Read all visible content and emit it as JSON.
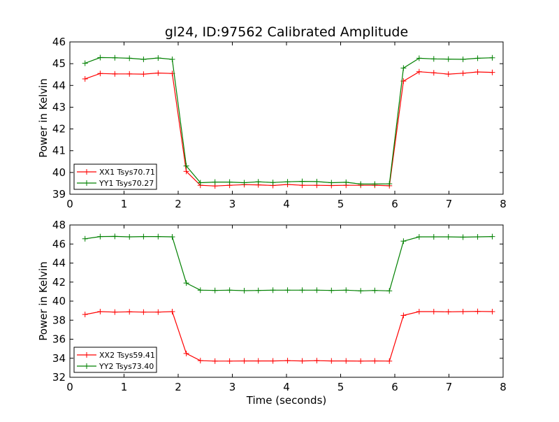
{
  "title": "gl24, ID:97562 Calibrated Amplitude",
  "colors": {
    "xx": "#ff0000",
    "yy": "#008000",
    "axes": "#000000",
    "background": "#ffffff"
  },
  "chart_data": [
    {
      "type": "line",
      "title": "gl24, ID:97562 Calibrated Amplitude",
      "xlabel": "",
      "ylabel": "Power in Kelvin",
      "xlim": [
        0,
        8
      ],
      "ylim": [
        39,
        46
      ],
      "xticks": [
        "0",
        "1",
        "2",
        "3",
        "4",
        "5",
        "6",
        "7",
        "8"
      ],
      "yticks": [
        "39",
        "40",
        "41",
        "42",
        "43",
        "44",
        "45",
        "46"
      ],
      "grid": false,
      "legend_position": "lower-left",
      "x": [
        0.28,
        0.56,
        0.83,
        1.1,
        1.36,
        1.63,
        1.89,
        2.15,
        2.41,
        2.68,
        2.95,
        3.22,
        3.48,
        3.75,
        4.02,
        4.29,
        4.56,
        4.83,
        5.1,
        5.37,
        5.63,
        5.9,
        6.16,
        6.45,
        6.72,
        6.99,
        7.26,
        7.53,
        7.8
      ],
      "series": [
        {
          "name": "XX1 Tsys70.71",
          "color": "#ff0000",
          "marker": "+",
          "values": [
            44.3,
            44.55,
            44.53,
            44.53,
            44.52,
            44.57,
            44.55,
            40.05,
            39.41,
            39.38,
            39.41,
            39.44,
            39.43,
            39.4,
            39.45,
            39.41,
            39.41,
            39.4,
            39.41,
            39.41,
            39.41,
            39.39,
            44.2,
            44.63,
            44.58,
            44.52,
            44.56,
            44.62,
            44.6
          ]
        },
        {
          "name": "YY1 Tsys70.27",
          "color": "#008000",
          "marker": "+",
          "values": [
            45.02,
            45.28,
            45.27,
            45.25,
            45.2,
            45.26,
            45.2,
            40.3,
            39.53,
            39.56,
            39.56,
            39.53,
            39.57,
            39.54,
            39.57,
            39.59,
            39.58,
            39.53,
            39.55,
            39.47,
            39.47,
            39.48,
            44.8,
            45.25,
            45.22,
            45.21,
            45.2,
            45.25,
            45.27
          ]
        }
      ]
    },
    {
      "type": "line",
      "title": "",
      "xlabel": "Time (seconds)",
      "ylabel": "Power in Kelvin",
      "xlim": [
        0,
        8
      ],
      "ylim": [
        32,
        48
      ],
      "xticks": [
        "0",
        "1",
        "2",
        "3",
        "4",
        "5",
        "6",
        "7",
        "8"
      ],
      "yticks": [
        "32",
        "34",
        "36",
        "38",
        "40",
        "42",
        "44",
        "46",
        "48"
      ],
      "grid": false,
      "legend_position": "lower-left",
      "x": [
        0.28,
        0.56,
        0.83,
        1.1,
        1.36,
        1.63,
        1.89,
        2.15,
        2.41,
        2.68,
        2.95,
        3.22,
        3.48,
        3.75,
        4.02,
        4.29,
        4.56,
        4.83,
        5.1,
        5.37,
        5.63,
        5.9,
        6.16,
        6.45,
        6.72,
        6.99,
        7.26,
        7.53,
        7.8
      ],
      "series": [
        {
          "name": "XX2 Tsys59.41",
          "color": "#ff0000",
          "marker": "+",
          "values": [
            38.6,
            38.9,
            38.85,
            38.88,
            38.85,
            38.85,
            38.9,
            34.5,
            33.75,
            33.7,
            33.7,
            33.72,
            33.72,
            33.72,
            33.75,
            33.72,
            33.75,
            33.72,
            33.72,
            33.7,
            33.72,
            33.7,
            38.5,
            38.9,
            38.9,
            38.88,
            38.9,
            38.92,
            38.9
          ]
        },
        {
          "name": "YY2 Tsys73.40",
          "color": "#008000",
          "marker": "+",
          "values": [
            46.55,
            46.78,
            46.8,
            46.75,
            46.78,
            46.78,
            46.75,
            41.9,
            41.15,
            41.12,
            41.15,
            41.1,
            41.12,
            41.15,
            41.15,
            41.15,
            41.15,
            41.12,
            41.15,
            41.08,
            41.12,
            41.08,
            46.3,
            46.75,
            46.75,
            46.75,
            46.72,
            46.75,
            46.78
          ]
        }
      ]
    }
  ]
}
